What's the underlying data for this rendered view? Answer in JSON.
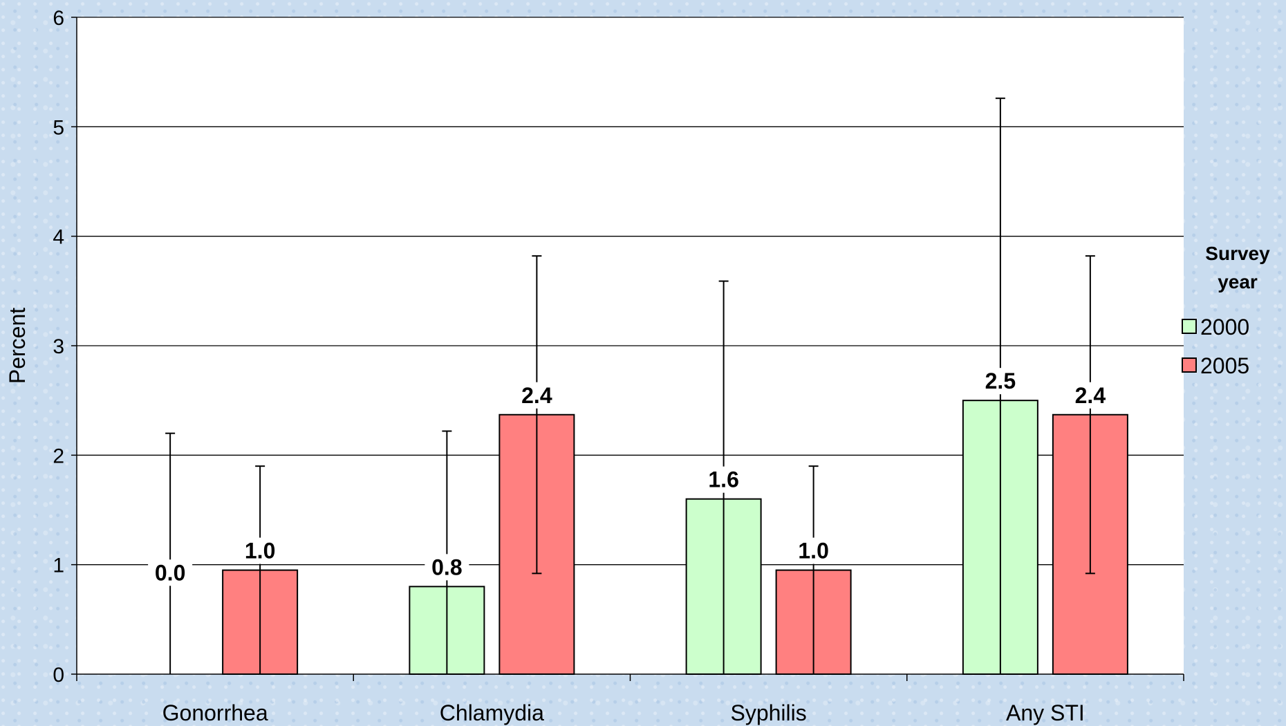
{
  "chart_data": {
    "type": "bar",
    "categories": [
      "Gonorrhea",
      "Chlamydia",
      "Syphilis",
      "Any STI"
    ],
    "series": [
      {
        "name": "2000",
        "color": "#ccffcc",
        "values": [
          0.0,
          0.8,
          1.6,
          2.5
        ],
        "labels": [
          "0.0",
          "0.8",
          "1.6",
          "2.5"
        ],
        "error_low": [
          0.0,
          0.0,
          0.0,
          0.0
        ],
        "error_high": [
          2.2,
          2.22,
          3.59,
          5.26
        ]
      },
      {
        "name": "2005",
        "color": "#ff8080",
        "values": [
          0.95,
          2.37,
          0.95,
          2.37
        ],
        "labels": [
          "1.0",
          "2.4",
          "1.0",
          "2.4"
        ],
        "error_low": [
          0.0,
          0.92,
          0.0,
          0.92
        ],
        "error_high": [
          1.9,
          3.82,
          1.9,
          3.82
        ]
      }
    ],
    "title": "",
    "xlabel": "",
    "ylabel": "Percent",
    "ylim": [
      0,
      6
    ],
    "yticks": [
      "0",
      "1",
      "2",
      "3",
      "4",
      "5",
      "6"
    ],
    "grid": true,
    "legend": {
      "title_line1": "Survey",
      "title_line2": "year",
      "placement": "right",
      "entries": [
        "2000",
        "2005"
      ]
    }
  }
}
